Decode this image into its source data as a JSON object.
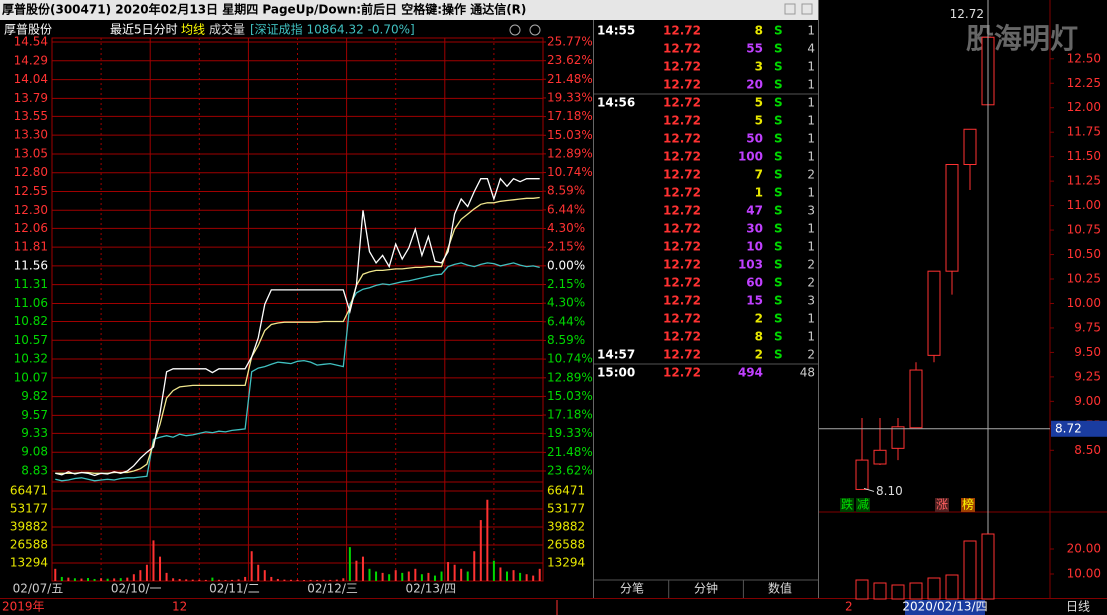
{
  "title_bar": {
    "text": "厚普股份(300471)  2020年02月13日 星期四 PageUp/Down:前后日 空格键:操作 通达信(R)"
  },
  "intraday": {
    "name": "厚普股份",
    "period": "最近5日分时",
    "avg_label": "均线",
    "volume_label": "成交量",
    "index_info": "[深证成指 10864.32 -0.70%]",
    "ylim": [
      8.83,
      14.54
    ],
    "yticks": [
      14.54,
      14.29,
      14.04,
      13.79,
      13.55,
      {
        "value": 13.3,
        "label": "13.30"
      },
      13.05,
      {
        "value": 12.8,
        "label": "12.80"
      },
      12.55,
      {
        "value": 12.3,
        "label": "12.30"
      },
      12.06,
      11.81,
      11.56,
      11.31,
      11.06,
      10.82,
      10.57,
      10.32,
      10.07,
      9.82,
      9.57,
      9.33,
      9.08,
      8.83
    ],
    "pct_ylim": [
      -23.62,
      25.77
    ],
    "pct_yticks": [
      {
        "value": 25.77,
        "label": "25.77%"
      },
      {
        "value": 23.62,
        "label": "23.62%"
      },
      {
        "value": 21.48,
        "label": "21.48%"
      },
      {
        "value": 19.33,
        "label": "19.33%"
      },
      {
        "value": 17.18,
        "label": "17.18%"
      },
      {
        "value": 15.03,
        "label": "15.03%"
      },
      {
        "value": 12.89,
        "label": "12.89%"
      },
      {
        "value": 10.74,
        "label": "10.74%"
      },
      {
        "value": 8.59,
        "label": "8.59%"
      },
      {
        "value": 6.44,
        "label": "6.44%"
      },
      {
        "value": 4.3,
        "label": "4.30%"
      },
      {
        "value": 2.15,
        "label": "2.15%"
      },
      {
        "value": 0,
        "label": "0.00%"
      },
      {
        "value": -2.15,
        "label": "2.15%"
      },
      {
        "value": -4.3,
        "label": "4.30%"
      },
      {
        "value": -6.44,
        "label": "6.44%"
      },
      {
        "value": -8.59,
        "label": "8.59%"
      },
      {
        "value": -10.74,
        "label": "10.74%"
      },
      {
        "value": -12.89,
        "label": "12.89%"
      },
      {
        "value": -15.03,
        "label": "15.03%"
      },
      {
        "value": -17.18,
        "label": "17.18%"
      },
      {
        "value": -19.33,
        "label": "19.33%"
      },
      {
        "value": -21.48,
        "label": "21.48%"
      },
      {
        "value": -23.62,
        "label": "23.62%"
      }
    ],
    "volume_ylim": [
      0,
      66471
    ],
    "volume_ticks": [
      66471,
      53177,
      39882,
      26588,
      13294
    ],
    "dates": [
      "02/07/五",
      "02/10/一",
      "02/11/二",
      "02/12/三",
      "02/13/四"
    ],
    "colors": {
      "price": "#ffffff",
      "avg": "#f0e68c",
      "index": "#40c0c0"
    },
    "price": [
      8.8,
      8.78,
      8.82,
      8.79,
      8.81,
      8.8,
      8.77,
      8.8,
      8.79,
      8.82,
      8.8,
      8.83,
      8.9,
      9.0,
      9.08,
      9.15,
      9.6,
      10.15,
      10.19,
      10.19,
      10.19,
      10.19,
      10.19,
      10.19,
      10.14,
      10.19,
      10.19,
      10.19,
      10.19,
      10.19,
      10.35,
      10.6,
      11.05,
      11.24,
      11.24,
      11.24,
      11.24,
      11.24,
      11.24,
      11.24,
      11.24,
      11.24,
      11.24,
      11.24,
      11.24,
      10.95,
      11.3,
      12.3,
      11.75,
      11.6,
      11.7,
      11.55,
      11.85,
      11.65,
      11.8,
      12.05,
      11.7,
      11.95,
      11.62,
      11.6,
      11.75,
      12.25,
      12.45,
      12.35,
      12.55,
      12.72,
      12.72,
      12.45,
      12.72,
      12.62,
      12.72,
      12.68,
      12.72,
      12.72,
      12.72
    ],
    "avg": [
      8.8,
      8.8,
      8.8,
      8.8,
      8.81,
      8.81,
      8.8,
      8.8,
      8.8,
      8.81,
      8.81,
      8.81,
      8.83,
      8.86,
      8.92,
      9.2,
      9.45,
      9.8,
      9.9,
      9.95,
      9.96,
      9.97,
      9.97,
      9.97,
      9.97,
      9.97,
      9.97,
      9.97,
      9.97,
      9.97,
      10.35,
      10.5,
      10.7,
      10.78,
      10.8,
      10.81,
      10.81,
      10.81,
      10.81,
      10.81,
      10.81,
      10.82,
      10.82,
      10.82,
      10.82,
      11.0,
      11.3,
      11.45,
      11.48,
      11.5,
      11.5,
      11.51,
      11.52,
      11.52,
      11.53,
      11.54,
      11.54,
      11.55,
      11.55,
      11.55,
      11.8,
      12.05,
      12.18,
      12.25,
      12.32,
      12.38,
      12.4,
      12.4,
      12.42,
      12.43,
      12.44,
      12.45,
      12.46,
      12.46,
      12.47
    ],
    "index": [
      8.72,
      8.7,
      8.71,
      8.73,
      8.74,
      8.72,
      8.7,
      8.71,
      8.72,
      8.71,
      8.73,
      8.74,
      8.74,
      8.75,
      8.76,
      9.25,
      9.28,
      9.3,
      9.28,
      9.32,
      9.3,
      9.31,
      9.33,
      9.35,
      9.34,
      9.36,
      9.35,
      9.37,
      9.38,
      9.39,
      10.15,
      10.2,
      10.22,
      10.25,
      10.28,
      10.27,
      10.26,
      10.29,
      10.3,
      10.28,
      10.24,
      10.25,
      10.26,
      10.24,
      10.22,
      11.05,
      11.2,
      11.25,
      11.27,
      11.3,
      11.32,
      11.31,
      11.33,
      11.35,
      11.36,
      11.38,
      11.4,
      11.42,
      11.44,
      11.45,
      11.55,
      11.58,
      11.6,
      11.57,
      11.55,
      11.58,
      11.6,
      11.59,
      11.56,
      11.58,
      11.6,
      11.57,
      11.55,
      11.56,
      11.54
    ],
    "volume": [
      9000,
      3000,
      2500,
      2000,
      1800,
      2200,
      1500,
      2000,
      1700,
      1900,
      2100,
      2500,
      5000,
      8000,
      12000,
      30000,
      18000,
      6000,
      2000,
      1500,
      1200,
      1000,
      900,
      800,
      2500,
      900,
      700,
      800,
      1200,
      3000,
      22000,
      12000,
      8000,
      3000,
      1500,
      1000,
      900,
      800,
      700,
      800,
      700,
      900,
      800,
      1000,
      2000,
      25000,
      15000,
      18000,
      9000,
      7000,
      6000,
      5000,
      8000,
      6000,
      7000,
      9000,
      5000,
      6000,
      4000,
      7000,
      14000,
      12000,
      9000,
      7000,
      22000,
      45000,
      60000,
      15000,
      10000,
      7000,
      8000,
      6000,
      5000,
      4000,
      9000
    ]
  },
  "ticks": {
    "rows": [
      {
        "time": "14:55",
        "price": 12.72,
        "volume": 8,
        "side": "S",
        "count": 1
      },
      {
        "time": null,
        "price": 12.72,
        "volume": 55,
        "side": "S",
        "count": 4
      },
      {
        "time": null,
        "price": 12.72,
        "volume": 3,
        "side": "S",
        "count": 1
      },
      {
        "time": null,
        "price": 12.72,
        "volume": 20,
        "side": "S",
        "count": 1
      },
      {
        "time": "14:56",
        "price": 12.72,
        "volume": 5,
        "side": "S",
        "count": 1
      },
      {
        "time": null,
        "price": 12.72,
        "volume": 5,
        "side": "S",
        "count": 1
      },
      {
        "time": null,
        "price": 12.72,
        "volume": 50,
        "side": "S",
        "count": 1
      },
      {
        "time": null,
        "price": 12.72,
        "volume": 100,
        "side": "S",
        "count": 1
      },
      {
        "time": null,
        "price": 12.72,
        "volume": 7,
        "side": "S",
        "count": 2
      },
      {
        "time": null,
        "price": 12.72,
        "volume": 1,
        "side": "S",
        "count": 1
      },
      {
        "time": null,
        "price": 12.72,
        "volume": 47,
        "side": "S",
        "count": 3
      },
      {
        "time": null,
        "price": 12.72,
        "volume": 30,
        "side": "S",
        "count": 1
      },
      {
        "time": null,
        "price": 12.72,
        "volume": 10,
        "side": "S",
        "count": 1
      },
      {
        "time": null,
        "price": 12.72,
        "volume": 103,
        "side": "S",
        "count": 2
      },
      {
        "time": null,
        "price": 12.72,
        "volume": 60,
        "side": "S",
        "count": 2
      },
      {
        "time": null,
        "price": 12.72,
        "volume": 15,
        "side": "S",
        "count": 3
      },
      {
        "time": null,
        "price": 12.72,
        "volume": 2,
        "side": "S",
        "count": 1
      },
      {
        "time": null,
        "price": 12.72,
        "volume": 8,
        "side": "S",
        "count": 1
      },
      {
        "time": "14:57",
        "price": 12.72,
        "volume": 2,
        "side": "S",
        "count": 2
      },
      {
        "time": "15:00",
        "price": 12.72,
        "volume": 494,
        "side": null,
        "count": 48
      }
    ],
    "tabs": [
      "分笔",
      "分钟",
      "数值"
    ]
  },
  "kline": {
    "ylim": [
      7.89,
      13.07
    ],
    "yticks": [
      {
        "value": 12.5,
        "label": "12.50"
      },
      {
        "value": 12.25,
        "label": "12.25"
      },
      {
        "value": 12,
        "label": "12.00"
      },
      {
        "value": 11.75,
        "label": "11.75"
      },
      {
        "value": 11.5,
        "label": "11.50"
      },
      {
        "value": 11.25,
        "label": "11.25"
      },
      {
        "value": 11,
        "label": "11.00"
      },
      {
        "value": 10.75,
        "label": "10.75"
      },
      {
        "value": 10.5,
        "label": "10.50"
      },
      {
        "value": 10.25,
        "label": "10.25"
      },
      {
        "value": 10,
        "label": "10.00"
      },
      {
        "value": 9.75,
        "label": "9.75"
      },
      {
        "value": 9.5,
        "label": "9.50"
      },
      {
        "value": 9.25,
        "label": "9.25"
      },
      {
        "value": 9,
        "label": "9.00"
      },
      {
        "value": 8.75,
        "label": "8.75"
      },
      {
        "value": 8.5,
        "label": "8.50"
      }
    ],
    "candles": [
      {
        "open": 8.1,
        "close": 8.4,
        "high": 8.83,
        "low": 8.1
      },
      {
        "open": 8.36,
        "close": 8.5,
        "high": 8.83,
        "low": 8.35
      },
      {
        "open": 8.52,
        "close": 8.74,
        "high": 8.83,
        "low": 8.4
      },
      {
        "open": 8.73,
        "close": 9.32,
        "high": 9.4,
        "low": 8.73
      },
      {
        "open": 9.47,
        "close": 10.33,
        "high": 10.33,
        "low": 9.4
      },
      {
        "open": 10.33,
        "close": 11.42,
        "high": 11.42,
        "low": 10.09
      },
      {
        "open": 11.42,
        "close": 11.78,
        "high": 11.78,
        "low": 11.16
      },
      {
        "open": 12.03,
        "close": 12.72,
        "high": 12.72,
        "low": 12.03
      }
    ],
    "high": {
      "value": 12.72,
      "label": "12.72"
    },
    "low": {
      "value": 8.1,
      "label": "8.10"
    },
    "cursor": {
      "value": 8.72,
      "label": "8.72"
    },
    "tags": [
      "跌",
      "减",
      "涨",
      "榜"
    ],
    "vol_ylim": [
      0,
      33.6
    ],
    "vol_yticks": [
      {
        "value": 20,
        "label": "20.00"
      },
      {
        "value": 10,
        "label": "10.00"
      }
    ],
    "volume": [
      7.6,
      6.4,
      5.6,
      6.4,
      8.4,
      9.6,
      23.2,
      26
    ],
    "watermark": "股海明灯"
  },
  "bottom_bar": {
    "left": "2019年",
    "mid": "12",
    "right_mark": "2",
    "date": "2020/02/13/四",
    "period": "日线"
  }
}
